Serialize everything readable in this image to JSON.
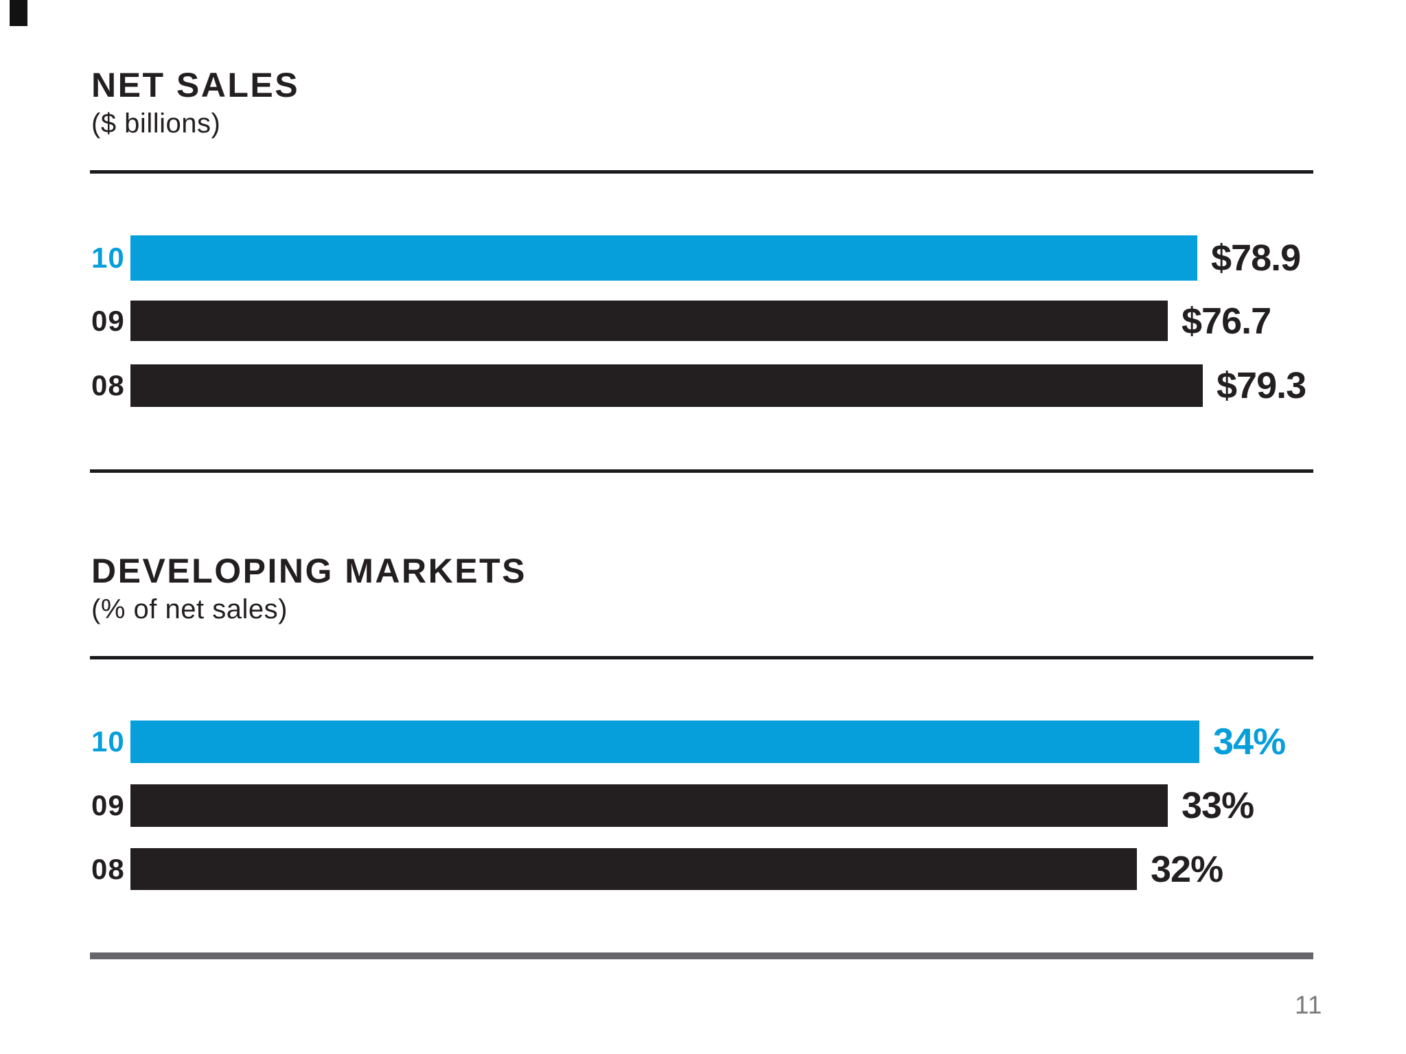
{
  "page": {
    "number": "11"
  },
  "colors": {
    "accent_blue": "#069edb",
    "bar_dark": "#231f20",
    "rule_dark": "#1c191d",
    "rule_gray": "#67666a",
    "page_number_gray": "#77787b"
  },
  "chart_data": [
    {
      "type": "bar",
      "orientation": "horizontal",
      "title": "NET SALES",
      "subtitle": "($ billions)",
      "categories": [
        "10",
        "09",
        "08"
      ],
      "values": [
        78.9,
        76.7,
        79.3
      ],
      "value_labels": [
        "$78.9",
        "$76.7",
        "$79.3"
      ],
      "highlighted_category": "10",
      "bar_colors": [
        "accent",
        "dark",
        "dark"
      ],
      "value_label_colors": [
        "dark",
        "dark",
        "dark"
      ],
      "xlim": [
        0,
        87
      ],
      "grid": false,
      "legend": false
    },
    {
      "type": "bar",
      "orientation": "horizontal",
      "title": "DEVELOPING MARKETS",
      "subtitle": "(% of net sales)",
      "categories": [
        "10",
        "09",
        "08"
      ],
      "values": [
        34,
        33,
        32
      ],
      "value_labels": [
        "34%",
        "33%",
        "32%"
      ],
      "highlighted_category": "10",
      "bar_colors": [
        "accent",
        "dark",
        "dark"
      ],
      "value_label_colors": [
        "accent",
        "dark",
        "dark"
      ],
      "xlim": [
        0,
        37.6
      ],
      "grid": false,
      "legend": false
    }
  ]
}
